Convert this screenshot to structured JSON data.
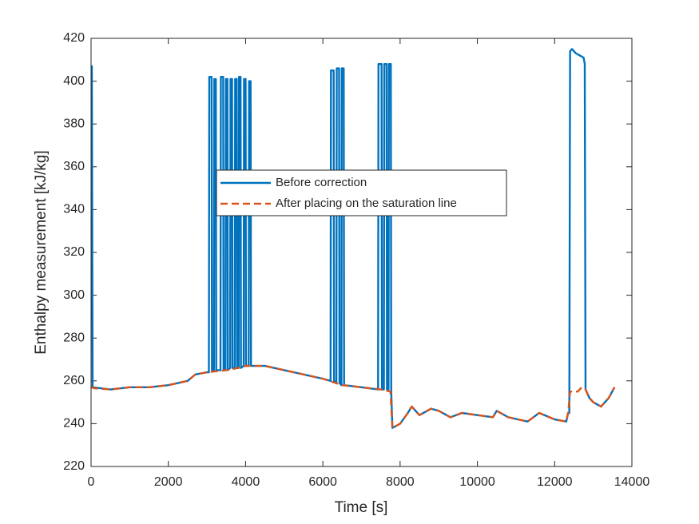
{
  "chart_data": {
    "type": "line",
    "xlabel": "Time [s]",
    "ylabel": "Enthalpy measurement [kJ/kg]",
    "xlim": [
      0,
      14000
    ],
    "xticks": [
      0,
      2000,
      4000,
      6000,
      8000,
      10000,
      12000,
      14000
    ],
    "ylim": [
      220,
      420
    ],
    "yticks": [
      220,
      240,
      260,
      280,
      300,
      320,
      340,
      360,
      380,
      400,
      420
    ],
    "grid": false,
    "legend": "center",
    "series": [
      {
        "name": "Before correction",
        "color": "#0072bd",
        "dash": false,
        "x": [
          0,
          20,
          40,
          500,
          1000,
          1500,
          2000,
          2500,
          2700,
          3000,
          3050,
          3060,
          3120,
          3130,
          3180,
          3190,
          3230,
          3240,
          3350,
          3360,
          3420,
          3430,
          3480,
          3490,
          3530,
          3540,
          3600,
          3610,
          3650,
          3660,
          3720,
          3730,
          3770,
          3780,
          3820,
          3830,
          3870,
          3880,
          3950,
          3960,
          4000,
          4010,
          4080,
          4090,
          4130,
          4140,
          4500,
          5000,
          5500,
          6000,
          6200,
          6210,
          6280,
          6290,
          6350,
          6360,
          6420,
          6430,
          6480,
          6490,
          6540,
          6550,
          7000,
          7430,
          7440,
          7520,
          7530,
          7580,
          7590,
          7650,
          7660,
          7700,
          7710,
          7760,
          7770,
          7800,
          8000,
          8200,
          8300,
          8500,
          8800,
          9000,
          9300,
          9600,
          10000,
          10400,
          10500,
          10800,
          11300,
          11600,
          12000,
          12300,
          12350,
          12380,
          12400,
          12450,
          12550,
          12650,
          12750,
          12780,
          12800,
          12900,
          13000,
          13200,
          13400,
          13550
        ],
        "values": [
          407,
          407,
          257,
          256,
          257,
          257,
          258,
          260,
          263,
          264,
          264,
          402,
          402,
          265,
          265,
          401,
          401,
          265,
          265,
          402,
          402,
          265,
          265,
          401,
          401,
          265,
          266,
          401,
          401,
          266,
          266,
          401,
          401,
          266,
          266,
          402,
          402,
          266,
          267,
          401,
          401,
          267,
          267,
          400,
          400,
          267,
          267,
          265,
          263,
          261,
          260,
          405,
          405,
          260,
          259,
          406,
          406,
          259,
          258,
          406,
          406,
          258,
          257,
          256,
          408,
          408,
          256,
          256,
          408,
          408,
          256,
          256,
          408,
          408,
          255,
          238,
          240,
          245,
          248,
          244,
          247,
          246,
          243,
          245,
          244,
          243,
          246,
          243,
          241,
          245,
          242,
          241,
          245,
          245,
          414,
          415,
          413,
          412,
          411,
          408,
          256,
          252,
          250,
          248,
          252,
          257
        ]
      },
      {
        "name": "After placing on the saturation line",
        "color": "#d95319",
        "dash": true,
        "x": [
          0,
          100,
          500,
          1000,
          1500,
          2000,
          2500,
          2700,
          3000,
          3500,
          3800,
          4000,
          4500,
          5000,
          5500,
          6000,
          6500,
          7000,
          7500,
          7750,
          7800,
          8000,
          8200,
          8300,
          8500,
          8800,
          9000,
          9300,
          9600,
          10000,
          10400,
          10500,
          10800,
          11300,
          11600,
          12000,
          12300,
          12350,
          12400,
          12600,
          12700,
          12800,
          12900,
          13000,
          13200,
          13400,
          13550
        ],
        "values": [
          257,
          256.5,
          256,
          257,
          257,
          258,
          260,
          263,
          264,
          265,
          266,
          267,
          267,
          265,
          263,
          261,
          258,
          257,
          256,
          255,
          238,
          240,
          245,
          248,
          244,
          247,
          246,
          243,
          245,
          244,
          243,
          246,
          243,
          241,
          245,
          242,
          241,
          245,
          255,
          255,
          257,
          256,
          252,
          250,
          248,
          252,
          257
        ]
      }
    ]
  }
}
